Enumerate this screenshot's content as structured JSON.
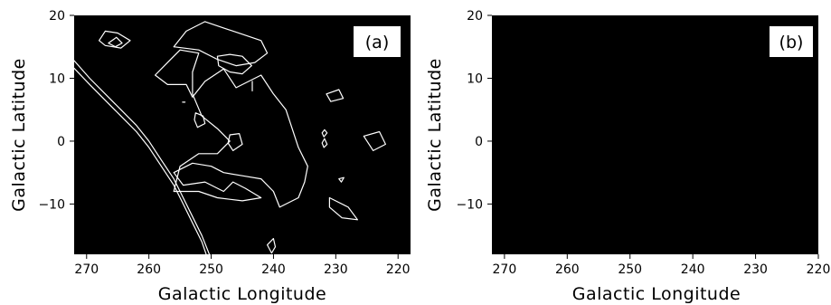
{
  "colors": {
    "plot_background": "#000000",
    "contour": "#ffffff",
    "page_background": "#ffffff",
    "text": "#000000"
  },
  "chart_data": [
    {
      "type": "contour",
      "panel_label": "(a)",
      "xlabel": "Galactic Longitude",
      "ylabel": "Galactic Latitude",
      "xlim": [
        272,
        218
      ],
      "ylim": [
        -18,
        20
      ],
      "x_ticks": [
        270,
        260,
        250,
        240,
        230,
        220
      ],
      "y_ticks": [
        20,
        10,
        0,
        -10
      ],
      "contours": [
        {
          "name": "plane-edge-1",
          "points": [
            [
              272,
              12.8
            ],
            [
              269.5,
              10
            ],
            [
              267,
              7.5
            ],
            [
              264.5,
              5
            ],
            [
              262,
              2.5
            ],
            [
              260,
              0
            ],
            [
              258,
              -3
            ],
            [
              256,
              -6
            ],
            [
              254.5,
              -9
            ],
            [
              253,
              -12
            ],
            [
              251.5,
              -15
            ],
            [
              250.3,
              -18
            ]
          ]
        },
        {
          "name": "plane-edge-2",
          "points": [
            [
              272,
              11.6
            ],
            [
              269.5,
              9
            ],
            [
              267,
              6.5
            ],
            [
              264.5,
              4
            ],
            [
              262,
              1.5
            ],
            [
              260,
              -1
            ],
            [
              258,
              -4
            ],
            [
              256,
              -7
            ],
            [
              254.5,
              -10
            ],
            [
              253,
              -13
            ],
            [
              251.5,
              -16
            ],
            [
              250.8,
              -18
            ]
          ]
        },
        {
          "name": "main-complex",
          "points": [
            [
              248,
              11.5
            ],
            [
              246,
              8.5
            ],
            [
              242,
              10.5
            ],
            [
              240,
              7.5
            ],
            [
              238,
              5
            ],
            [
              237,
              2
            ],
            [
              236,
              -1
            ],
            [
              234.5,
              -4
            ],
            [
              235,
              -6.5
            ],
            [
              236,
              -9
            ],
            [
              239,
              -10.5
            ],
            [
              240,
              -8
            ],
            [
              242,
              -6
            ],
            [
              245,
              -5.5
            ],
            [
              248,
              -5
            ],
            [
              250,
              -4
            ],
            [
              253,
              -3.5
            ],
            [
              256,
              -5
            ],
            [
              254.5,
              -7
            ],
            [
              251,
              -6.5
            ],
            [
              248,
              -8
            ],
            [
              246.5,
              -6.5
            ],
            [
              244.5,
              -7.5
            ],
            [
              242,
              -9
            ],
            [
              245,
              -9.5
            ],
            [
              249,
              -9
            ],
            [
              252,
              -8
            ],
            [
              256,
              -8
            ],
            [
              255,
              -4
            ],
            [
              252,
              -2
            ],
            [
              249,
              -2
            ],
            [
              247,
              0
            ],
            [
              249,
              2
            ],
            [
              251.5,
              4
            ],
            [
              253,
              7.5
            ],
            [
              253,
              11
            ],
            [
              252,
              14
            ],
            [
              255,
              14.5
            ],
            [
              257,
              12.5
            ],
            [
              259,
              10.5
            ],
            [
              257,
              9
            ],
            [
              254,
              9
            ],
            [
              253,
              7
            ],
            [
              251,
              9.5
            ],
            [
              248,
              11.5
            ]
          ]
        },
        {
          "name": "upper-ridge",
          "points": [
            [
              256,
              15
            ],
            [
              254,
              17.5
            ],
            [
              251,
              19
            ],
            [
              248,
              18
            ],
            [
              245,
              17
            ],
            [
              242,
              16
            ],
            [
              241,
              14
            ],
            [
              243,
              12.5
            ],
            [
              246,
              12
            ],
            [
              249,
              13
            ],
            [
              252,
              14.5
            ],
            [
              256,
              15
            ]
          ]
        },
        {
          "name": "left-top-blob",
          "points": [
            [
              268,
              16
            ],
            [
              267,
              17.5
            ],
            [
              265,
              17.2
            ],
            [
              263,
              16
            ],
            [
              264.5,
              14.8
            ],
            [
              267,
              15.2
            ],
            [
              268,
              16
            ]
          ]
        },
        {
          "name": "left-top-inner",
          "points": [
            [
              266.5,
              15.6
            ],
            [
              265.2,
              16.5
            ],
            [
              264.3,
              15.6
            ],
            [
              265.4,
              15
            ],
            [
              266.5,
              15.6
            ]
          ]
        },
        {
          "name": "ring-244",
          "points": [
            [
              249,
              13.5
            ],
            [
              247,
              13.8
            ],
            [
              245,
              13.5
            ],
            [
              243.5,
              12
            ],
            [
              245,
              10.7
            ],
            [
              247,
              11
            ],
            [
              248.8,
              12
            ],
            [
              249,
              13.5
            ]
          ]
        },
        {
          "name": "small-252",
          "points": [
            [
              252.5,
              4.5
            ],
            [
              251.3,
              4
            ],
            [
              251,
              2.8
            ],
            [
              252.2,
              2.2
            ],
            [
              252.7,
              3.4
            ],
            [
              252.5,
              4.5
            ]
          ]
        },
        {
          "name": "small-246",
          "points": [
            [
              247,
              1
            ],
            [
              245.5,
              1.2
            ],
            [
              245,
              -0.5
            ],
            [
              246.5,
              -1.5
            ],
            [
              247.3,
              -0.3
            ],
            [
              247,
              1
            ]
          ]
        },
        {
          "name": "stub-243",
          "points": [
            [
              243.4,
              9.5
            ],
            [
              243.4,
              8
            ]
          ]
        },
        {
          "name": "dot-254",
          "points": [
            [
              254.6,
              6.2
            ],
            [
              254.2,
              6.2
            ]
          ]
        },
        {
          "name": "rect-230",
          "points": [
            [
              231.5,
              7.5
            ],
            [
              229.5,
              8.2
            ],
            [
              228.8,
              6.8
            ],
            [
              230.8,
              6.3
            ],
            [
              231.5,
              7.5
            ]
          ]
        },
        {
          "name": "drop-231",
          "points": [
            [
              231.8,
              1.8
            ],
            [
              231.4,
              1.3
            ],
            [
              231.9,
              0.7
            ],
            [
              232.2,
              1.3
            ],
            [
              231.8,
              1.8
            ]
          ]
        },
        {
          "name": "diamond-231",
          "points": [
            [
              231.8,
              0.4
            ],
            [
              231.4,
              -0.5
            ],
            [
              231.9,
              -1
            ],
            [
              232.2,
              -0.3
            ],
            [
              231.8,
              0.4
            ]
          ]
        },
        {
          "name": "small-224",
          "points": [
            [
              225.5,
              0.8
            ],
            [
              223,
              1.5
            ],
            [
              222,
              -0.5
            ],
            [
              224,
              -1.5
            ],
            [
              225.5,
              0.8
            ]
          ]
        },
        {
          "name": "dot-229",
          "points": [
            [
              229.5,
              -6
            ],
            [
              228.7,
              -5.8
            ],
            [
              229.1,
              -6.5
            ],
            [
              229.5,
              -6
            ]
          ]
        },
        {
          "name": "below-229",
          "points": [
            [
              231,
              -9
            ],
            [
              228,
              -10.5
            ],
            [
              226.5,
              -12.5
            ],
            [
              229,
              -12.2
            ],
            [
              231,
              -10.5
            ],
            [
              231,
              -9
            ]
          ]
        },
        {
          "name": "low-240",
          "points": [
            [
              240,
              -15.5
            ],
            [
              239.7,
              -16.8
            ],
            [
              240.3,
              -17.8
            ],
            [
              241,
              -16.5
            ],
            [
              240,
              -15.5
            ]
          ]
        }
      ]
    },
    {
      "type": "contour",
      "panel_label": "(b)",
      "xlabel": "Galactic Longitude",
      "ylabel": "Galactic Latitude",
      "xlim": [
        272,
        220
      ],
      "ylim": [
        -18,
        20
      ],
      "x_ticks": [
        270,
        260,
        250,
        240,
        230,
        220
      ],
      "y_ticks": [
        20,
        10,
        0,
        -10
      ],
      "contours": []
    }
  ]
}
